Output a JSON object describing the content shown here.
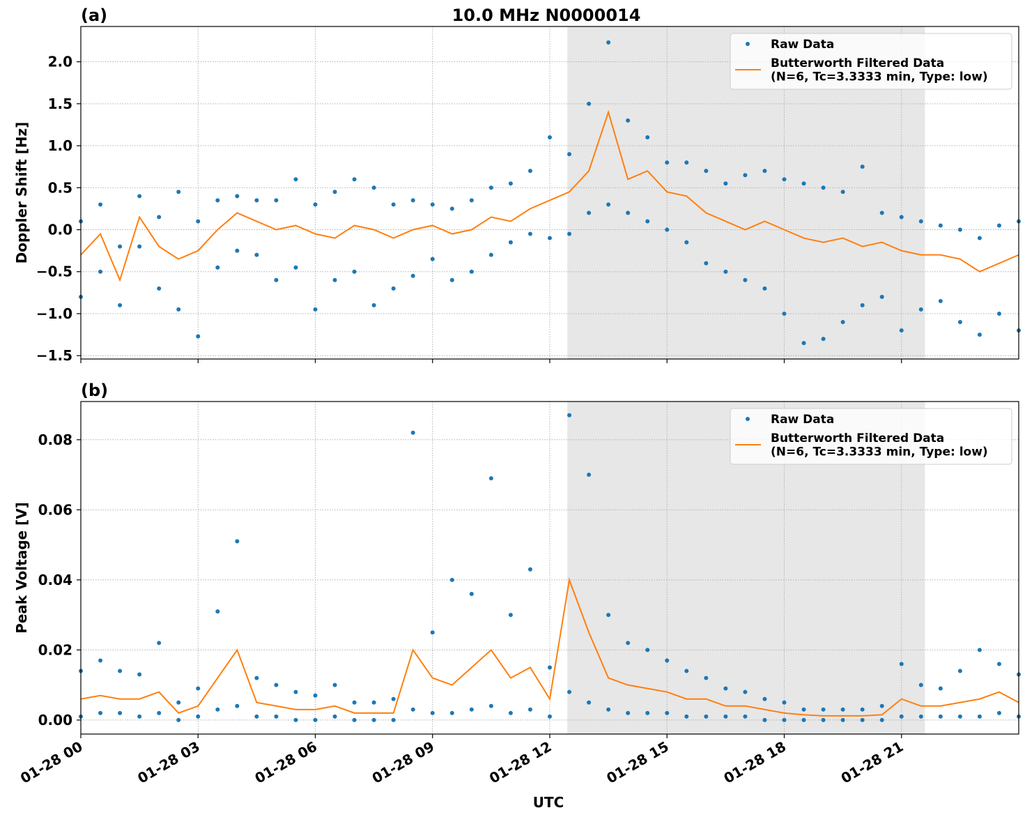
{
  "chart_data": [
    {
      "type": "line",
      "panel_label": "(a)",
      "title": "10.0 MHz N0000014",
      "y_label": "Doppler Shift [Hz]",
      "xlim": [
        0,
        24
      ],
      "xticks": [
        0,
        3,
        6,
        9,
        12,
        15,
        18,
        21
      ],
      "ylim": [
        -1.54,
        2.42
      ],
      "yticks": [
        {
          "value": -1.5,
          "label": "−1.5"
        },
        {
          "value": -1.0,
          "label": "−1.0"
        },
        {
          "value": -0.5,
          "label": "−0.5"
        },
        {
          "value": 0.0,
          "label": "0.0"
        },
        {
          "value": 0.5,
          "label": "0.5"
        },
        {
          "value": 1.0,
          "label": "1.0"
        },
        {
          "value": 1.5,
          "label": "1.5"
        },
        {
          "value": 2.0,
          "label": "2.0"
        }
      ],
      "grid": true,
      "legend": "upper right",
      "shaded_span": [
        12.45,
        21.6
      ],
      "series": [
        {
          "name": "Raw Data",
          "kind": "scatter",
          "color": "#1f77b4",
          "x": [
            0,
            0,
            0.5,
            0.5,
            1,
            1,
            1.5,
            1.5,
            2,
            2,
            2.5,
            2.5,
            3,
            3,
            3.5,
            3.5,
            4,
            4,
            4.5,
            4.5,
            5,
            5,
            5.5,
            5.5,
            6,
            6,
            6.5,
            6.5,
            7,
            7,
            7.5,
            7.5,
            8,
            8,
            8.5,
            8.5,
            9,
            9,
            9.5,
            9.5,
            10,
            10,
            10.5,
            10.5,
            11,
            11,
            11.5,
            11.5,
            12,
            12,
            12.5,
            12.5,
            13,
            13,
            13.5,
            13.5,
            14,
            14,
            14.5,
            14.5,
            15,
            15,
            15.5,
            15.5,
            16,
            16,
            16.5,
            16.5,
            17,
            17,
            17.5,
            17.5,
            18,
            18,
            18.5,
            18.5,
            19,
            19,
            19.5,
            19.5,
            20,
            20,
            20.5,
            20.5,
            21,
            21,
            21.5,
            21.5,
            22,
            22,
            22.5,
            22.5,
            23,
            23,
            23.5,
            23.5,
            24,
            24
          ],
          "values": [
            0.1,
            -0.8,
            0.3,
            -0.5,
            -0.2,
            -0.9,
            0.4,
            -0.2,
            0.15,
            -0.7,
            0.45,
            -0.95,
            0.1,
            -1.27,
            0.35,
            -0.45,
            0.4,
            -0.25,
            0.35,
            -0.3,
            0.35,
            -0.6,
            0.6,
            -0.45,
            0.3,
            -0.95,
            0.45,
            -0.6,
            0.6,
            -0.5,
            0.5,
            -0.9,
            0.3,
            -0.7,
            0.35,
            -0.55,
            0.3,
            -0.35,
            0.25,
            -0.6,
            0.35,
            -0.5,
            0.5,
            -0.3,
            0.55,
            -0.15,
            0.7,
            -0.05,
            1.1,
            -0.1,
            0.9,
            -0.05,
            1.5,
            0.2,
            2.23,
            0.3,
            1.3,
            0.2,
            1.1,
            0.1,
            0.8,
            0.0,
            0.8,
            -0.15,
            0.7,
            -0.4,
            0.55,
            -0.5,
            0.65,
            -0.6,
            0.7,
            -0.7,
            0.6,
            -1.0,
            0.55,
            -1.35,
            0.5,
            -1.3,
            0.45,
            -1.1,
            0.75,
            -0.9,
            0.2,
            -0.8,
            0.15,
            -1.2,
            0.1,
            -0.95,
            0.05,
            -0.85,
            0.0,
            -1.1,
            -0.1,
            -1.25,
            0.05,
            -1.0,
            0.1,
            -1.2
          ]
        },
        {
          "name": "Butterworth Filtered Data\n(N=6, Tc=3.3333 min, Type: low)",
          "kind": "line",
          "color": "#ff7f0e",
          "x": [
            0,
            0.5,
            1,
            1.5,
            2,
            2.5,
            3,
            3.5,
            4,
            4.5,
            5,
            5.5,
            6,
            6.5,
            7,
            7.5,
            8,
            8.5,
            9,
            9.5,
            10,
            10.5,
            11,
            11.5,
            12,
            12.5,
            13,
            13.5,
            14,
            14.5,
            15,
            15.5,
            16,
            16.5,
            17,
            17.5,
            18,
            18.5,
            19,
            19.5,
            20,
            20.5,
            21,
            21.5,
            22,
            22.5,
            23,
            23.5,
            24
          ],
          "values": [
            -0.3,
            -0.05,
            -0.6,
            0.15,
            -0.2,
            -0.35,
            -0.25,
            0.0,
            0.2,
            0.1,
            0.0,
            0.05,
            -0.05,
            -0.1,
            0.05,
            0.0,
            -0.1,
            0.0,
            0.05,
            -0.05,
            0.0,
            0.15,
            0.1,
            0.25,
            0.35,
            0.45,
            0.7,
            1.4,
            0.6,
            0.7,
            0.45,
            0.4,
            0.2,
            0.1,
            0.0,
            0.1,
            0.0,
            -0.1,
            -0.15,
            -0.1,
            -0.2,
            -0.15,
            -0.25,
            -0.3,
            -0.3,
            -0.35,
            -0.5,
            -0.4,
            -0.3
          ]
        }
      ]
    },
    {
      "type": "line",
      "panel_label": "(b)",
      "y_label": "Peak Voltage [V]",
      "x_label": "UTC",
      "xlim": [
        0,
        24
      ],
      "xticks": [
        {
          "value": 0,
          "label": "01-28 00"
        },
        {
          "value": 3,
          "label": "01-28 03"
        },
        {
          "value": 6,
          "label": "01-28 06"
        },
        {
          "value": 9,
          "label": "01-28 09"
        },
        {
          "value": 12,
          "label": "01-28 12"
        },
        {
          "value": 15,
          "label": "01-28 15"
        },
        {
          "value": 18,
          "label": "01-28 18"
        },
        {
          "value": 21,
          "label": "01-28 21"
        }
      ],
      "ylim": [
        -0.004,
        0.0909
      ],
      "yticks": [
        {
          "value": 0.0,
          "label": "0.00"
        },
        {
          "value": 0.02,
          "label": "0.02"
        },
        {
          "value": 0.04,
          "label": "0.04"
        },
        {
          "value": 0.06,
          "label": "0.06"
        },
        {
          "value": 0.08,
          "label": "0.08"
        }
      ],
      "grid": true,
      "legend": "upper right",
      "shaded_span": [
        12.45,
        21.6
      ],
      "series": [
        {
          "name": "Raw Data",
          "kind": "scatter",
          "color": "#1f77b4",
          "x": [
            0,
            0,
            0.5,
            0.5,
            1,
            1,
            1.5,
            1.5,
            2,
            2,
            2.5,
            2.5,
            3,
            3,
            3.5,
            3.5,
            4,
            4,
            4.5,
            4.5,
            5,
            5,
            5.5,
            5.5,
            6,
            6,
            6.5,
            6.5,
            7,
            7,
            7.5,
            7.5,
            8,
            8,
            8.5,
            8.5,
            9,
            9,
            9.5,
            9.5,
            10,
            10,
            10.5,
            10.5,
            11,
            11,
            11.5,
            11.5,
            12,
            12,
            12.5,
            12.5,
            13,
            13,
            13.5,
            13.5,
            14,
            14,
            14.5,
            14.5,
            15,
            15,
            15.5,
            15.5,
            16,
            16,
            16.5,
            16.5,
            17,
            17,
            17.5,
            17.5,
            18,
            18,
            18.5,
            18.5,
            19,
            19,
            19.5,
            19.5,
            20,
            20,
            20.5,
            20.5,
            21,
            21,
            21.5,
            21.5,
            22,
            22,
            22.5,
            22.5,
            23,
            23,
            23.5,
            23.5,
            24,
            24
          ],
          "values": [
            0.014,
            0.001,
            0.017,
            0.002,
            0.014,
            0.002,
            0.013,
            0.001,
            0.022,
            0.002,
            0.005,
            0.0,
            0.009,
            0.001,
            0.031,
            0.003,
            0.051,
            0.004,
            0.012,
            0.001,
            0.01,
            0.001,
            0.008,
            0.0,
            0.007,
            0.0,
            0.01,
            0.001,
            0.005,
            0.0,
            0.005,
            0.0,
            0.006,
            0.0,
            0.082,
            0.003,
            0.025,
            0.002,
            0.04,
            0.002,
            0.036,
            0.003,
            0.069,
            0.004,
            0.03,
            0.002,
            0.043,
            0.003,
            0.015,
            0.001,
            0.087,
            0.008,
            0.07,
            0.005,
            0.03,
            0.003,
            0.022,
            0.002,
            0.02,
            0.002,
            0.017,
            0.002,
            0.014,
            0.001,
            0.012,
            0.001,
            0.009,
            0.001,
            0.008,
            0.001,
            0.006,
            0.0,
            0.005,
            0.0,
            0.003,
            0.0,
            0.003,
            0.0,
            0.003,
            0.0,
            0.003,
            0.0,
            0.004,
            0.0,
            0.016,
            0.001,
            0.01,
            0.001,
            0.009,
            0.001,
            0.014,
            0.001,
            0.02,
            0.001,
            0.016,
            0.002,
            0.013,
            0.001
          ]
        },
        {
          "name": "Butterworth Filtered Data\n(N=6, Tc=3.3333 min, Type: low)",
          "kind": "line",
          "color": "#ff7f0e",
          "x": [
            0,
            0.5,
            1,
            1.5,
            2,
            2.5,
            3,
            3.5,
            4,
            4.5,
            5,
            5.5,
            6,
            6.5,
            7,
            7.5,
            8,
            8.5,
            9,
            9.5,
            10,
            10.5,
            11,
            11.5,
            12,
            12.5,
            13,
            13.5,
            14,
            14.5,
            15,
            15.5,
            16,
            16.5,
            17,
            17.5,
            18,
            18.5,
            19,
            19.5,
            20,
            20.5,
            21,
            21.5,
            22,
            22.5,
            23,
            23.5,
            24
          ],
          "values": [
            0.006,
            0.007,
            0.006,
            0.006,
            0.008,
            0.002,
            0.004,
            0.012,
            0.02,
            0.005,
            0.004,
            0.003,
            0.003,
            0.004,
            0.002,
            0.002,
            0.002,
            0.02,
            0.012,
            0.01,
            0.015,
            0.02,
            0.012,
            0.015,
            0.006,
            0.04,
            0.025,
            0.012,
            0.01,
            0.009,
            0.008,
            0.006,
            0.006,
            0.004,
            0.004,
            0.003,
            0.002,
            0.0015,
            0.0012,
            0.0012,
            0.0012,
            0.0015,
            0.006,
            0.004,
            0.004,
            0.005,
            0.006,
            0.008,
            0.005
          ]
        }
      ]
    }
  ]
}
